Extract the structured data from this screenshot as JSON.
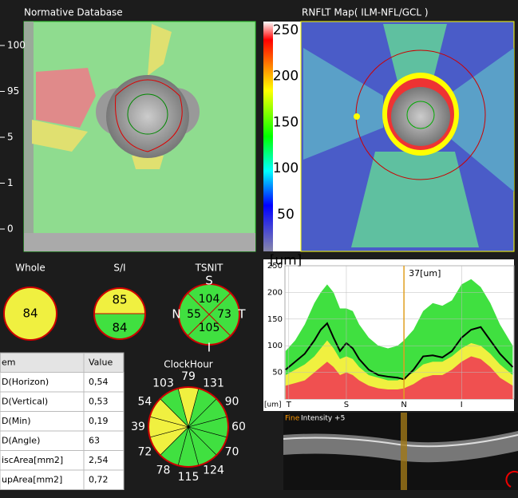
{
  "normative": {
    "title": "Normative Database",
    "scale": [
      "100",
      "95",
      "5",
      "1",
      "0"
    ]
  },
  "rnflt": {
    "title": "RNFLT Map( ILM-NFL/GCL )",
    "colorbar": [
      "250",
      "200",
      "150",
      "100",
      "50",
      "[um]"
    ]
  },
  "whole": {
    "title": "Whole",
    "value": "84"
  },
  "si": {
    "title": "S/I",
    "superior": "85",
    "inferior": "84"
  },
  "tsnit": {
    "title": "TSNIT",
    "S": "S",
    "N": "N",
    "T": "T",
    "I": "I",
    "superior": "104",
    "nasal": "55",
    "temporal": "73",
    "inferior": "105"
  },
  "table": {
    "header": [
      "em",
      "Value"
    ],
    "rows": [
      [
        "D(Horizon)",
        "0,54"
      ],
      [
        "D(Vertical)",
        "0,53"
      ],
      [
        "D(Min)",
        "0,19"
      ],
      [
        "D(Angle)",
        "63"
      ],
      [
        "iscArea[mm2]",
        "2,54"
      ],
      [
        "upArea[mm2]",
        "0,72"
      ]
    ]
  },
  "clock": {
    "title": "ClockHour",
    "values": [
      79,
      131,
      90,
      60,
      70,
      124,
      115,
      78,
      72,
      39,
      54,
      103
    ],
    "colors": [
      "#f0f040",
      "#40e040",
      "#40e040",
      "#40e040",
      "#40e040",
      "#40e040",
      "#40e040",
      "#40e040",
      "#f0f040",
      "#f0f040",
      "#f0f040",
      "#40e040"
    ]
  },
  "bscan": {
    "mode": "Fine",
    "intensity": "Intensity +5"
  },
  "chart_data": {
    "type": "line",
    "y_unit": "[um]",
    "annotation": "37[um]",
    "cursor_x": 180,
    "xlim": [
      -6,
      352
    ],
    "ylim": [
      0,
      250
    ],
    "yticks": [
      50,
      100,
      150,
      200,
      250
    ],
    "xticks": [
      {
        "value": 0,
        "label": "T"
      },
      {
        "value": 90,
        "label": "S"
      },
      {
        "value": 180,
        "label": "N"
      },
      {
        "value": 270,
        "label": "I"
      }
    ],
    "x": [
      -5,
      10,
      25,
      40,
      50,
      60,
      70,
      80,
      90,
      100,
      110,
      125,
      140,
      155,
      170,
      180,
      195,
      210,
      225,
      240,
      255,
      270,
      285,
      300,
      315,
      330,
      350
    ],
    "bands": [
      {
        "color": "#40e040",
        "values": [
          90,
          110,
          140,
          180,
          200,
          215,
          200,
          170,
          170,
          165,
          140,
          115,
          100,
          95,
          100,
          110,
          130,
          165,
          180,
          175,
          185,
          215,
          225,
          210,
          180,
          140,
          100
        ]
      },
      {
        "color": "#f0f040",
        "values": [
          45,
          55,
          65,
          80,
          95,
          110,
          95,
          75,
          80,
          75,
          60,
          45,
          40,
          35,
          35,
          40,
          50,
          65,
          70,
          70,
          80,
          95,
          105,
          100,
          85,
          65,
          45
        ]
      },
      {
        "color": "#f05050",
        "values": [
          25,
          30,
          35,
          50,
          60,
          70,
          60,
          45,
          50,
          45,
          35,
          25,
          20,
          18,
          18,
          20,
          28,
          40,
          45,
          45,
          55,
          70,
          80,
          75,
          60,
          40,
          25
        ]
      }
    ],
    "series": [
      {
        "color": "#000000",
        "values": [
          55,
          70,
          85,
          110,
          130,
          142,
          115,
          90,
          105,
          95,
          75,
          55,
          45,
          42,
          40,
          37,
          55,
          80,
          82,
          78,
          90,
          115,
          130,
          135,
          110,
          85,
          60
        ]
      }
    ]
  }
}
